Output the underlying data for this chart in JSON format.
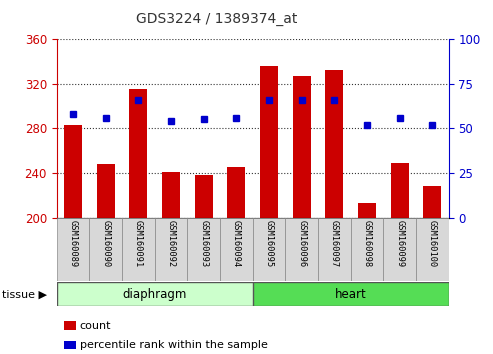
{
  "title": "GDS3224 / 1389374_at",
  "samples": [
    "GSM160089",
    "GSM160090",
    "GSM160091",
    "GSM160092",
    "GSM160093",
    "GSM160094",
    "GSM160095",
    "GSM160096",
    "GSM160097",
    "GSM160098",
    "GSM160099",
    "GSM160100"
  ],
  "counts": [
    283,
    248,
    315,
    241,
    238,
    245,
    336,
    327,
    332,
    213,
    249,
    228
  ],
  "percentiles": [
    58,
    56,
    66,
    54,
    55,
    56,
    66,
    66,
    66,
    52,
    56,
    52
  ],
  "tissues": [
    "diaphragm",
    "diaphragm",
    "diaphragm",
    "diaphragm",
    "diaphragm",
    "diaphragm",
    "heart",
    "heart",
    "heart",
    "heart",
    "heart",
    "heart"
  ],
  "ylim_left": [
    200,
    360
  ],
  "ylim_right": [
    0,
    100
  ],
  "yticks_left": [
    200,
    240,
    280,
    320,
    360
  ],
  "yticks_right": [
    0,
    25,
    50,
    75,
    100
  ],
  "bar_color": "#cc0000",
  "dot_color": "#0000cc",
  "diaphragm_color_light": "#ccffcc",
  "heart_color": "#55dd55",
  "left_axis_color": "#cc0000",
  "right_axis_color": "#0000cc",
  "grid_color": "#000000",
  "legend_count_color": "#cc0000",
  "legend_pct_color": "#0000cc",
  "sample_cell_color": "#d8d8d8",
  "plot_bg_color": "#ffffff"
}
